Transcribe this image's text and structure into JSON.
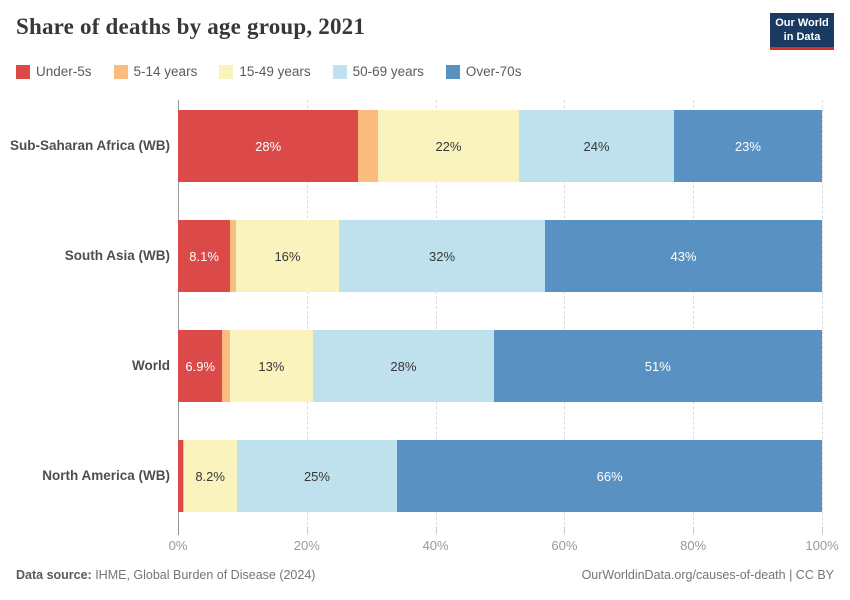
{
  "title": "Share of deaths by age group, 2021",
  "logo": {
    "line1": "Our World",
    "line2": "in Data"
  },
  "chart_data": {
    "type": "bar",
    "stacked": true,
    "orientation": "horizontal",
    "title": "Share of deaths by age group, 2021",
    "categories": [
      "Sub-Saharan Africa (WB)",
      "South Asia (WB)",
      "World",
      "North America (WB)"
    ],
    "series": [
      {
        "name": "Under-5s",
        "color": "#DB4948",
        "label_color": "#ffffff",
        "values": [
          28,
          8.1,
          6.9,
          0.8
        ]
      },
      {
        "name": "5-14 years",
        "color": "#FABD7F",
        "label_color": "#373737",
        "values": [
          3,
          0.9,
          1.1,
          0.1
        ]
      },
      {
        "name": "15-49 years",
        "color": "#FAF3BD",
        "label_color": "#373737",
        "values": [
          22,
          16,
          13,
          8.2
        ]
      },
      {
        "name": "50-69 years",
        "color": "#BFE0ED",
        "label_color": "#373737",
        "values": [
          24,
          32,
          28,
          25
        ]
      },
      {
        "name": "Over-70s",
        "color": "#5A91C3",
        "label_color": "#ffffff",
        "values": [
          23,
          43,
          51,
          66
        ]
      }
    ],
    "value_labels": [
      [
        "28%",
        "",
        "22%",
        "24%",
        "23%"
      ],
      [
        "8.1%",
        "",
        "16%",
        "32%",
        "43%"
      ],
      [
        "6.9%",
        "",
        "13%",
        "28%",
        "51%"
      ],
      [
        "",
        "",
        "8.2%",
        "25%",
        "66%"
      ]
    ],
    "x_ticks": [
      "0%",
      "20%",
      "40%",
      "60%",
      "80%",
      "100%"
    ],
    "x_tick_values": [
      0,
      20,
      40,
      60,
      80,
      100
    ],
    "xlim": [
      0,
      100
    ],
    "legend_position": "top",
    "grid": "dashed-vertical"
  },
  "footer": {
    "source_label": "Data source:",
    "source_text": " IHME, Global Burden of Disease (2024)",
    "right_text": "OurWorldinData.org/causes-of-death | CC BY"
  }
}
